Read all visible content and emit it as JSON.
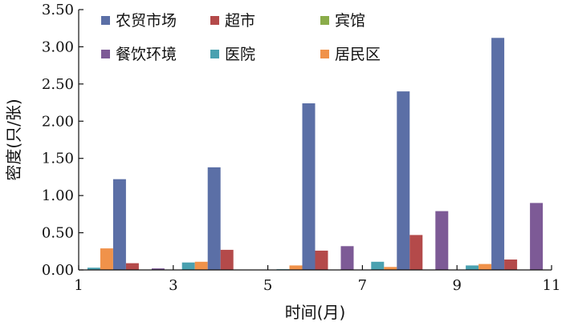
{
  "chart_data": {
    "type": "bar",
    "xlabel": "时间(月)",
    "ylabel": "密度(只/张)",
    "ylim": [
      0,
      3.5
    ],
    "xlim": [
      1,
      11
    ],
    "y_ticks": [
      "0.00",
      "0.50",
      "1.00",
      "1.50",
      "2.00",
      "2.50",
      "3.00",
      "3.50"
    ],
    "x_ticks": [
      "1",
      "3",
      "5",
      "7",
      "9",
      "11"
    ],
    "categories": [
      "2",
      "4",
      "6",
      "8",
      "10"
    ],
    "grid": false,
    "legend_position": "top",
    "series": [
      {
        "name": "农贸市场",
        "color": "#5b6fa6",
        "values": [
          1.22,
          1.38,
          2.24,
          2.4,
          3.12
        ]
      },
      {
        "name": "超市",
        "color": "#b44a4a",
        "values": [
          0.09,
          0.27,
          0.26,
          0.47,
          0.14
        ]
      },
      {
        "name": "宾馆",
        "color": "#8aac4a",
        "values": [
          0,
          0,
          0,
          0,
          0
        ]
      },
      {
        "name": "餐饮环境",
        "color": "#7d5a96",
        "values": [
          0.02,
          0.0,
          0.32,
          0.79,
          0.9
        ]
      },
      {
        "name": "医院",
        "color": "#4aa1b0",
        "values": [
          0.03,
          0.1,
          0.01,
          0.11,
          0.06
        ]
      },
      {
        "name": "居民区",
        "color": "#f0924a",
        "values": [
          0.29,
          0.11,
          0.06,
          0.04,
          0.08
        ]
      }
    ],
    "series_order_in_group": [
      4,
      5,
      0,
      1,
      2,
      3
    ]
  }
}
